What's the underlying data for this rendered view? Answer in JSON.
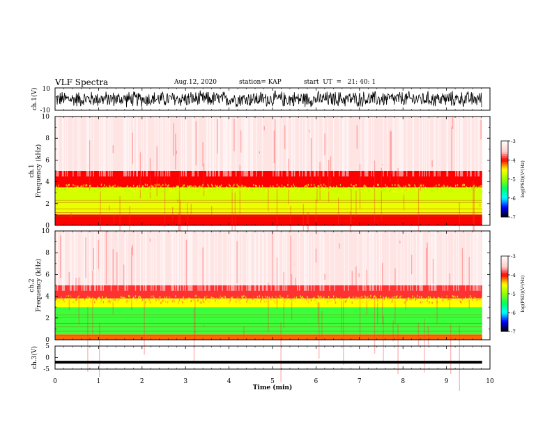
{
  "header": {
    "title": "VLF Spectra",
    "date": "Aug.12, 2020",
    "station": "station= KAP",
    "start_ut": "start  UT  =   21: 40: 1"
  },
  "chart_data": [
    {
      "id": "ch1_waveform",
      "type": "line",
      "ylabel": "ch.1(V)",
      "ylim": [
        -10,
        10
      ],
      "yticks": [
        "10",
        "-10"
      ],
      "xlim": [
        0,
        10
      ],
      "description_values": {
        "amplitude_range": [
          -10,
          10
        ],
        "typical_amplitude_abs": 8
      },
      "colors": {
        "line": "#000000"
      }
    },
    {
      "id": "ch1_spectrogram",
      "type": "heatmap",
      "ylabel": "ch.1\nFrequency (kHz)",
      "ylabel_lines": [
        "ch.1",
        "Frequency  (kHz)"
      ],
      "ylim": [
        0,
        10
      ],
      "yticks": [
        "0",
        "2",
        "4",
        "6",
        "8",
        "10"
      ],
      "xlim": [
        0,
        10
      ],
      "data_end_min": 9.82,
      "bands": [
        {
          "from_khz": 0,
          "to_khz": 1.0,
          "level": -4.0
        },
        {
          "from_khz": 1.0,
          "to_khz": 2.0,
          "level": -4.6
        },
        {
          "from_khz": 2.0,
          "to_khz": 3.5,
          "level": -4.7
        },
        {
          "from_khz": 3.5,
          "to_khz": 5.0,
          "level": -4.0
        },
        {
          "from_khz": 5.0,
          "to_khz": 10.0,
          "level": -3.3
        }
      ],
      "colorbar": {
        "label": "log(PSD)(V²/Hz)",
        "range": [
          -7,
          -3
        ],
        "ticks": [
          "-3",
          "-4",
          "-5",
          "-6",
          "-7"
        ]
      }
    },
    {
      "id": "ch2_spectrogram",
      "type": "heatmap",
      "ylabel": "ch.2\nFrequency (kHz)",
      "ylabel_lines": [
        "ch.2",
        "Frequency  (kHz)"
      ],
      "ylim": [
        0,
        10
      ],
      "yticks": [
        "0",
        "2",
        "4",
        "6",
        "8",
        "10"
      ],
      "xlim": [
        0,
        10
      ],
      "data_end_min": 9.82,
      "bands": [
        {
          "from_khz": 0,
          "to_khz": 0.5,
          "level": -4.2
        },
        {
          "from_khz": 0.5,
          "to_khz": 3.0,
          "level": -5.3
        },
        {
          "from_khz": 3.0,
          "to_khz": 3.8,
          "level": -4.5
        },
        {
          "from_khz": 3.8,
          "to_khz": 5.0,
          "level": -3.9
        },
        {
          "from_khz": 5.0,
          "to_khz": 10.0,
          "level": -3.3
        }
      ],
      "colorbar": {
        "label": "log(PSD)(V²/Hz)",
        "range": [
          -7,
          -3
        ],
        "ticks": [
          "-3",
          "-4",
          "-5",
          "-6",
          "-7"
        ]
      }
    },
    {
      "id": "ch3_waveform",
      "type": "line",
      "ylabel": "ch.3(V)",
      "ylim": [
        -5,
        5
      ],
      "yticks": [
        "5",
        "0",
        "-5"
      ],
      "xlim": [
        0,
        10
      ],
      "xlabel": "Time  (min)",
      "xticks": [
        "0",
        "1",
        "2",
        "3",
        "4",
        "5",
        "6",
        "7",
        "8",
        "9",
        "10"
      ],
      "description_values": {
        "mean": -2.0,
        "amplitude_abs": 0.6
      },
      "colors": {
        "line": "#000000"
      }
    }
  ],
  "colormap": [
    "#ffffff",
    "#ff0000",
    "#ffff00",
    "#00ff00",
    "#00ffff",
    "#0000ff",
    "#000000"
  ]
}
